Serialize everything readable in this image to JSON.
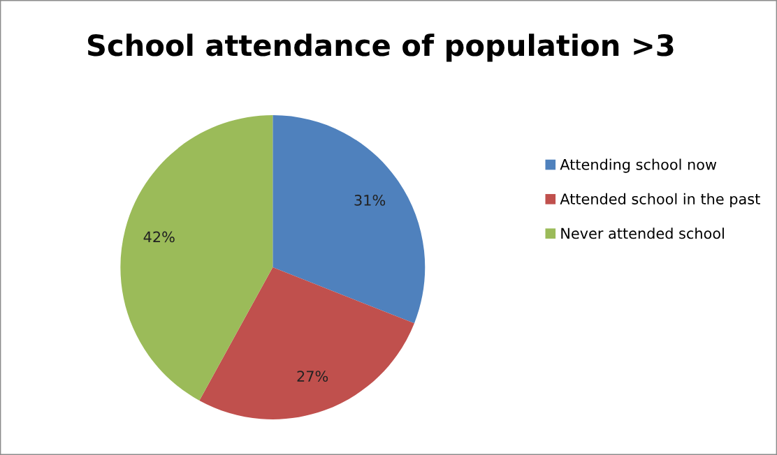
{
  "chart_data": {
    "type": "pie",
    "title": "School attendance of population >3",
    "categories": [
      "Attending school now",
      "Attended school in the past",
      "Never attended school"
    ],
    "values": [
      31,
      27,
      42
    ],
    "colors": [
      "#4f81bd",
      "#c0504d",
      "#9bbb59"
    ],
    "value_labels": [
      "31%",
      "27%",
      "42%"
    ],
    "legend": "right"
  }
}
